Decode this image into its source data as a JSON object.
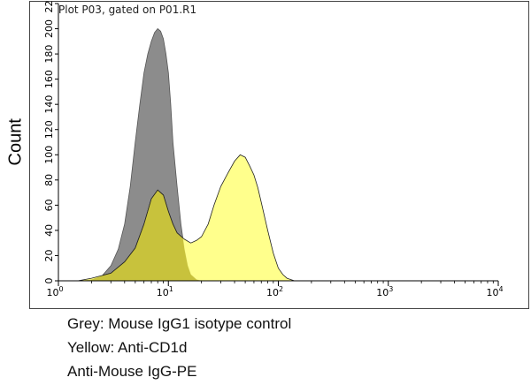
{
  "plot_title": "Plot P03, gated on P01.R1",
  "ylabel": "Count",
  "captions": {
    "line1": "Grey: Mouse IgG1 isotype control",
    "line2": "Yellow: Anti-CD1d",
    "line3": "Anti-Mouse IgG-PE"
  },
  "colors": {
    "isotype": "#8c8c8c",
    "anti_cd1d": "#ffff80",
    "overlap": "#c8c23c",
    "axis": "#000000"
  },
  "chart_data": {
    "type": "area",
    "title": "Plot P03, gated on P01.R1",
    "xlabel": "",
    "ylabel": "Count",
    "xscale": "log",
    "xlim": [
      1,
      10000
    ],
    "ylim": [
      0,
      220
    ],
    "x_ticks": [
      {
        "value": 1,
        "base": "10",
        "exp": "0"
      },
      {
        "value": 10,
        "base": "10",
        "exp": "1"
      },
      {
        "value": 100,
        "base": "10",
        "exp": "2"
      },
      {
        "value": 1000,
        "base": "10",
        "exp": "3"
      },
      {
        "value": 10000,
        "base": "10",
        "exp": "4"
      }
    ],
    "y_ticks": [
      "0",
      "20",
      "40",
      "60",
      "80",
      "100",
      "120",
      "140",
      "160",
      "180",
      "200",
      "220"
    ],
    "grid": false,
    "series": [
      {
        "name": "Mouse IgG1 isotype control",
        "color_key": "isotype",
        "x": [
          1.5,
          2.0,
          2.5,
          3.0,
          3.5,
          4.0,
          4.5,
          5.0,
          5.5,
          6.0,
          6.5,
          7.0,
          7.5,
          8.0,
          8.5,
          9.0,
          9.5,
          10.0,
          10.5,
          11.0,
          12.0,
          13.0,
          14.0,
          15.0,
          16.0,
          18.0,
          20.0
        ],
        "y": [
          0,
          1,
          4,
          12,
          25,
          45,
          75,
          110,
          140,
          165,
          180,
          190,
          197,
          200,
          198,
          192,
          180,
          165,
          140,
          110,
          75,
          45,
          25,
          12,
          5,
          1,
          0
        ]
      },
      {
        "name": "Anti-CD1d",
        "color_key": "anti_cd1d",
        "x": [
          1.5,
          2.0,
          3.0,
          4.0,
          5.0,
          6.0,
          7.0,
          8.0,
          9.0,
          10.0,
          11.0,
          12.0,
          14.0,
          16.0,
          18.0,
          20.0,
          23.0,
          26.0,
          30.0,
          35.0,
          40.0,
          45.0,
          50.0,
          55.0,
          60.0,
          65.0,
          70.0,
          80.0,
          90.0,
          100.0,
          110.0,
          120.0,
          140.0
        ],
        "y": [
          0,
          2,
          6,
          15,
          26,
          45,
          65,
          72,
          68,
          55,
          45,
          38,
          33,
          30,
          32,
          35,
          45,
          60,
          75,
          86,
          95,
          100,
          98,
          91,
          84,
          74,
          62,
          40,
          22,
          10,
          5,
          2,
          0
        ]
      }
    ]
  }
}
